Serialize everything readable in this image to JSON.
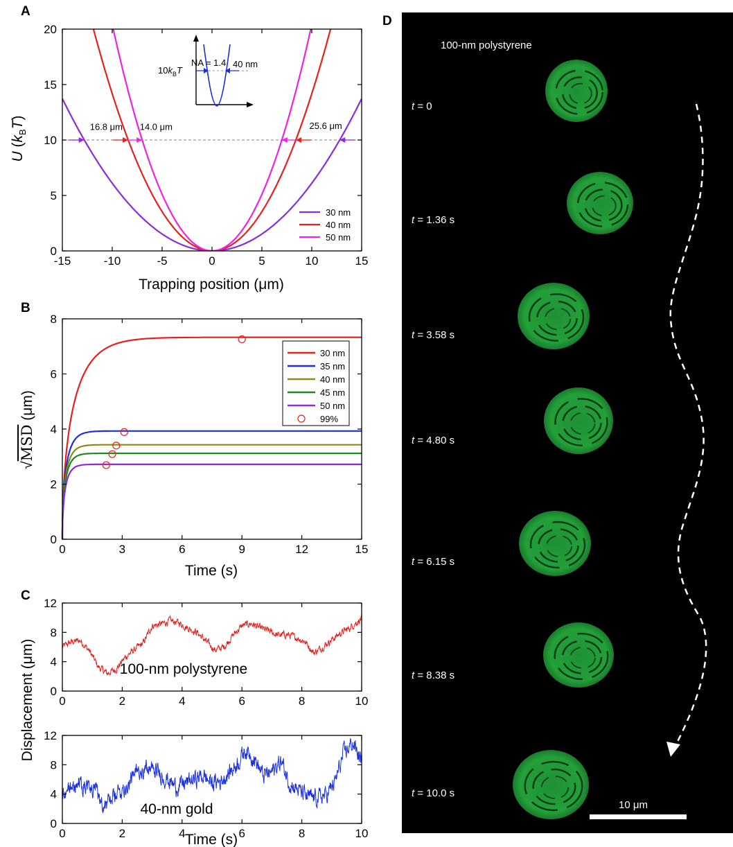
{
  "colors": {
    "red": "#e8201a",
    "magenta": "#ee22e6",
    "purple": "#8a2be2",
    "blue": "#1a2fe0",
    "olive": "#8c8a12",
    "green": "#1e8a1e",
    "violet": "#8a2be2",
    "particle": "#23a03a",
    "background_dark": "#000000"
  },
  "panels": {
    "A": {
      "letter": "A"
    },
    "B": {
      "letter": "B"
    },
    "C": {
      "letter": "C"
    },
    "D": {
      "letter": "D"
    }
  },
  "chart_data": [
    {
      "id": "A",
      "type": "line",
      "xlabel": "Trapping position (μm)",
      "ylabel_parts": {
        "u": "U",
        "open": " (",
        "k": "k",
        "sub": "B",
        "t": "T",
        "close": ")"
      },
      "xlim": [
        -15,
        15
      ],
      "ylim": [
        0,
        20
      ],
      "xticks": [
        -15,
        -10,
        -5,
        0,
        5,
        10,
        15
      ],
      "yticks": [
        0,
        5,
        10,
        15,
        20
      ],
      "xtick_labels": [
        "-15",
        "-10",
        "-5",
        "0",
        "5",
        "10",
        "15"
      ],
      "ytick_labels": [
        "0",
        "5",
        "10",
        "15",
        "20"
      ],
      "reference_level": 10,
      "series": [
        {
          "name": "30 nm",
          "color": "#8a2be2",
          "model": "parabola",
          "width_at_10": 25.6,
          "x": [
            -15,
            -12.8,
            -10,
            -5,
            0,
            5,
            10,
            12.8,
            15
          ],
          "y": [
            13.7,
            10.0,
            6.1,
            1.5,
            0.0,
            1.5,
            6.1,
            10.0,
            13.7
          ]
        },
        {
          "name": "40 nm",
          "color": "#e8201a",
          "model": "parabola",
          "width_at_10": 16.8,
          "x": [
            -9.4,
            -8.4,
            -5,
            0,
            5,
            8.4,
            9.4
          ],
          "y": [
            12.5,
            10.0,
            3.5,
            0.0,
            3.5,
            10.0,
            12.5
          ]
        },
        {
          "name": "50 nm",
          "color": "#ee22e6",
          "model": "parabola",
          "width_at_10": 14.0,
          "x": [
            -7.0,
            -5,
            0,
            5,
            7.0
          ],
          "y": [
            10.0,
            5.1,
            0.0,
            5.1,
            10.0
          ]
        }
      ],
      "annotations": [
        {
          "text": "16.8 μm",
          "color": "#e8201a",
          "x": -10.6,
          "y": 10.9
        },
        {
          "text": "14.0 μm",
          "color": "#ee22e6",
          "x": -5.6,
          "y": 10.9
        },
        {
          "text": "25.6 μm",
          "color": "#8a2be2",
          "x": 11.4,
          "y": 11.0
        }
      ],
      "legend": {
        "position": "bottom-right",
        "entries": [
          "30 nm",
          "40 nm",
          "50 nm"
        ]
      },
      "inset": {
        "title": "NA = 1.4",
        "level_label_parts": {
          "pre": "10",
          "k": "k",
          "sub": "B",
          "t": "T"
        },
        "width_label": "40 nm",
        "color": "#1a2fe0"
      }
    },
    {
      "id": "B",
      "type": "line",
      "xlabel": "Time (s)",
      "ylabel_parts": {
        "root": "√",
        "msd": "MSD",
        "unit": " (μm)"
      },
      "xlim": [
        0,
        15
      ],
      "ylim": [
        0,
        8
      ],
      "xticks": [
        0,
        3,
        6,
        9,
        12,
        15
      ],
      "yticks": [
        0,
        2,
        4,
        6,
        8
      ],
      "xtick_labels": [
        "0",
        "3",
        "6",
        "9",
        "12",
        "15"
      ],
      "ytick_labels": [
        "0",
        "2",
        "4",
        "6",
        "8"
      ],
      "series": [
        {
          "name": "30 nm",
          "color": "#e8201a",
          "plateau": 7.33,
          "tau": 1.95,
          "t99": 9.0
        },
        {
          "name": "35 nm",
          "color": "#1a2fe0",
          "plateau": 3.93,
          "tau": 0.67,
          "t99": 3.1
        },
        {
          "name": "40 nm",
          "color": "#8c8a12",
          "plateau": 3.43,
          "tau": 0.58,
          "t99": 2.7
        },
        {
          "name": "45 nm",
          "color": "#1e8a1e",
          "plateau": 3.12,
          "tau": 0.53,
          "t99": 2.5
        },
        {
          "name": "50 nm",
          "color": "#8a2be2",
          "plateau": 2.72,
          "tau": 0.49,
          "t99": 2.2
        }
      ],
      "markers": {
        "name": "99%",
        "color": "#e8201a",
        "points": [
          [
            9.0,
            7.26
          ],
          [
            3.1,
            3.89
          ],
          [
            2.7,
            3.4
          ],
          [
            2.5,
            3.09
          ],
          [
            2.2,
            2.69
          ]
        ]
      },
      "legend": {
        "position": "top-right",
        "entries": [
          "30 nm",
          "35 nm",
          "40 nm",
          "45 nm",
          "50 nm",
          "99%"
        ]
      }
    },
    {
      "id": "C1",
      "type": "line",
      "xlabel": "",
      "ylabel": "Displacement (μm)",
      "xlim": [
        0,
        10
      ],
      "ylim": [
        0,
        12
      ],
      "xticks": [
        0,
        2,
        4,
        6,
        8,
        10
      ],
      "yticks": [
        0,
        4,
        8,
        12
      ],
      "xtick_labels": [
        "0",
        "2",
        "4",
        "6",
        "8",
        "10"
      ],
      "ytick_labels": [
        "0",
        "4",
        "8",
        "12"
      ],
      "label": "100-nm polystyrene",
      "series": [
        {
          "name": "100-nm polystyrene",
          "color": "#e8201a",
          "noise": 0.35,
          "x": [
            0,
            0.3,
            0.6,
            0.9,
            1.2,
            1.5,
            1.8,
            2.1,
            2.4,
            2.7,
            3.0,
            3.3,
            3.6,
            3.9,
            4.2,
            4.5,
            4.8,
            5.1,
            5.4,
            5.7,
            6.0,
            6.3,
            6.6,
            6.9,
            7.2,
            7.5,
            7.8,
            8.1,
            8.4,
            8.7,
            9.0,
            9.3,
            9.6,
            10.0
          ],
          "y": [
            6.0,
            6.7,
            6.9,
            5.5,
            3.3,
            2.4,
            3.0,
            4.6,
            5.6,
            6.5,
            8.9,
            9.1,
            9.6,
            9.3,
            8.6,
            8.0,
            6.8,
            5.6,
            6.0,
            7.6,
            8.9,
            9.2,
            8.6,
            8.2,
            7.6,
            7.7,
            7.3,
            6.8,
            5.2,
            6.0,
            7.0,
            7.9,
            8.6,
            9.9
          ]
        }
      ]
    },
    {
      "id": "C2",
      "type": "line",
      "xlabel": "Time (s)",
      "ylabel": "",
      "xlim": [
        0,
        10
      ],
      "ylim": [
        0,
        12
      ],
      "xticks": [
        0,
        2,
        4,
        6,
        8,
        10
      ],
      "yticks": [
        0,
        4,
        8,
        12
      ],
      "xtick_labels": [
        "0",
        "2",
        "4",
        "6",
        "8",
        "10"
      ],
      "ytick_labels": [
        "0",
        "4",
        "8",
        "12"
      ],
      "label": "40-nm gold",
      "series": [
        {
          "name": "40-nm gold",
          "color": "#1a2fe0",
          "noise": 0.85,
          "x": [
            0,
            0.3,
            0.6,
            0.9,
            1.2,
            1.4,
            1.7,
            2.0,
            2.3,
            2.6,
            2.9,
            3.2,
            3.5,
            3.8,
            4.1,
            4.4,
            4.7,
            5.0,
            5.3,
            5.6,
            5.9,
            6.1,
            6.4,
            6.7,
            7.0,
            7.3,
            7.6,
            7.9,
            8.2,
            8.5,
            8.8,
            9.1,
            9.4,
            9.7,
            10.0
          ],
          "y": [
            4.0,
            5.0,
            5.5,
            4.8,
            4.0,
            2.3,
            3.5,
            4.5,
            6.0,
            7.5,
            7.5,
            7.0,
            6.0,
            5.0,
            5.5,
            6.0,
            6.5,
            5.5,
            5.8,
            7.0,
            8.5,
            10.0,
            9.0,
            6.5,
            7.0,
            8.5,
            5.5,
            4.5,
            3.5,
            3.5,
            3.8,
            5.5,
            9.5,
            11.0,
            8.5
          ]
        }
      ]
    }
  ],
  "micrograph": {
    "title": "100-nm polystyrene",
    "scale_bar_label": "10 μm",
    "frames": [
      {
        "pre": "t",
        "value": " = 0"
      },
      {
        "pre": "t",
        "value": " = 1.36 s"
      },
      {
        "pre": "t",
        "value": " = 3.58 s"
      },
      {
        "pre": "t",
        "value": " = 4.80 s"
      },
      {
        "pre": "t",
        "value": " = 6.15 s"
      },
      {
        "pre": "t",
        "value": " = 8.38 s"
      },
      {
        "pre": "t",
        "value": " = 10.0 s"
      }
    ]
  }
}
